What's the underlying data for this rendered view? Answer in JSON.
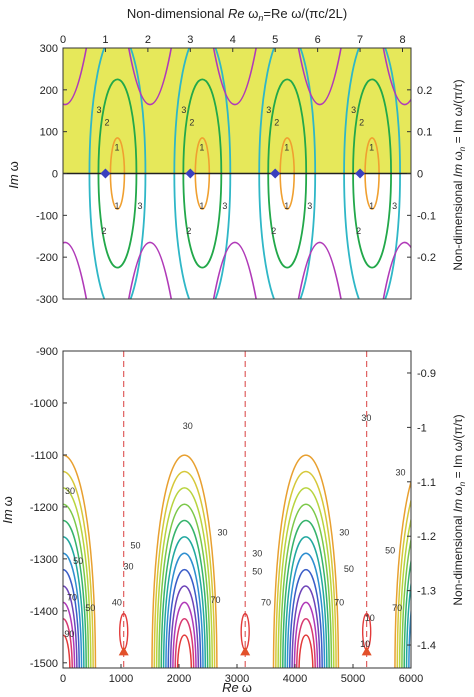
{
  "chart_data": [
    {
      "type": "contour",
      "top_xlabel": {
        "pre": "Non-dimensional ",
        "re": "Re",
        "mid": " ω",
        "sub": "n",
        "post": "=Re ω/(πc/2L)"
      },
      "top_xticks": [
        "0",
        "1",
        "2",
        "3",
        "4",
        "5",
        "6",
        "7",
        "8"
      ],
      "ylabel": {
        "im": "Im",
        "w": "ω"
      },
      "ylim": [
        -300,
        300
      ],
      "yticks": [
        "300",
        "200",
        "100",
        "0",
        "-100",
        "-200",
        "-300"
      ],
      "right_label": {
        "pre": "Non-dimensional ",
        "im": "Im",
        "mid": " ω",
        "sub": "n",
        "post": " = Im ω/(π/τ)"
      },
      "right_ticks": [
        "0.2",
        "0.1",
        "0",
        "-0.1",
        "-0.2"
      ],
      "right_tick_values": [
        0.2,
        0.1,
        0,
        -0.1,
        -0.2
      ],
      "shaded_region": {
        "from_y": 0,
        "to_y": 300,
        "color": "#e6e85a"
      },
      "markers": {
        "re_n": [
          1,
          3,
          5,
          7
        ],
        "im": 0,
        "color": "#3a3fbf"
      },
      "level_labels": [
        "1",
        "2",
        "3"
      ],
      "colors": {
        "l1": "#f0a030",
        "l2": "#22a84a",
        "l3": "#2fb7c7",
        "outer": "#b03ab8"
      }
    },
    {
      "type": "contour",
      "xlabel": {
        "re": "Re",
        "w": "ω"
      },
      "xlim": [
        0,
        6000
      ],
      "xticks": [
        "0",
        "1000",
        "2000",
        "3000",
        "4000",
        "5000",
        "6000"
      ],
      "ylabel": {
        "im": "Im",
        "w": "ω"
      },
      "ylim": [
        -1510,
        -900
      ],
      "yticks": [
        "-900",
        "-1000",
        "-1100",
        "-1200",
        "-1300",
        "-1400",
        "-1500"
      ],
      "right_label": {
        "pre": "Non-dimensional ",
        "im": "Im",
        "mid": " ω",
        "sub": "n",
        "post": " = Im ω/(π/τ)"
      },
      "right_ticks": [
        "-0.9",
        "-1",
        "-1.1",
        "-1.2",
        "-1.3",
        "-1.4"
      ],
      "right_tick_values": [
        -0.9,
        -1.0,
        -1.1,
        -1.2,
        -1.3,
        -1.4
      ],
      "dashed_lines_x": [
        1047,
        3141,
        5236
      ],
      "triangle_markers_x": [
        1047,
        3141,
        5236
      ],
      "triangle_im": -1478,
      "level_labels": [
        "10",
        "30",
        "40",
        "50",
        "70",
        "90"
      ],
      "dashed_color": "#d94040"
    }
  ]
}
